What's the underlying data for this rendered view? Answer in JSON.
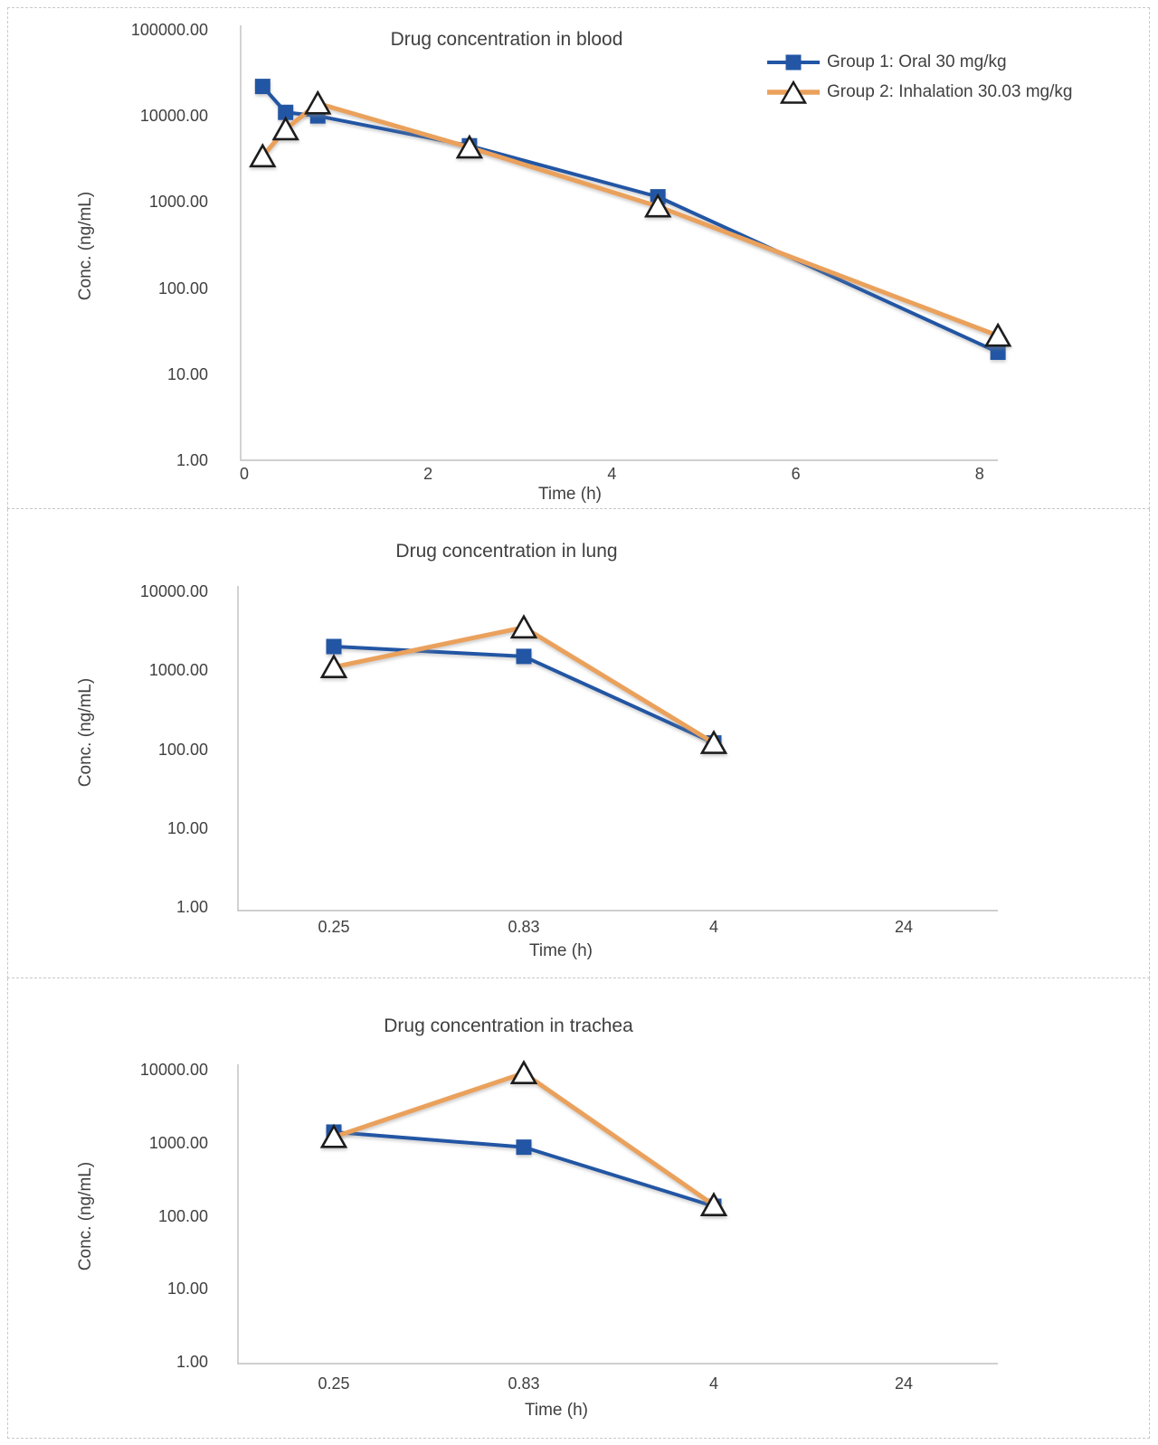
{
  "page": {
    "background": "#ffffff",
    "text_color": "#404040"
  },
  "legend": {
    "position": "top-right",
    "items": [
      {
        "label": "Group 1: Oral 30 mg/kg",
        "color": "#2356A4",
        "marker": "square"
      },
      {
        "label": "Group 2: Inhalation 30.03 mg/kg",
        "color": "#EAA15C",
        "marker": "triangle-open"
      }
    ]
  },
  "chart_data": [
    {
      "id": "blood",
      "type": "line",
      "title": "Drug concentration in blood",
      "xlabel": "Time (h)",
      "ylabel": "Conc. (ng/mL)",
      "y_scale": "log",
      "y_range": [
        1,
        100000
      ],
      "y_ticks": [
        "100000.00",
        "10000.00",
        "1000.00",
        "100.00",
        "10.00",
        "1.00"
      ],
      "x_type": "linear",
      "x_range": [
        0,
        8.2
      ],
      "x_ticks": [
        "0",
        "2",
        "4",
        "6",
        "8"
      ],
      "x_tick_values": [
        0,
        2,
        4,
        6,
        8
      ],
      "x": [
        0.2,
        0.45,
        0.8,
        2.45,
        4.5,
        8.2
      ],
      "series": [
        {
          "name": "Group 1: Oral 30 mg/kg",
          "values": [
            22000,
            11000,
            10000,
            4500,
            1150,
            18
          ]
        },
        {
          "name": "Group 2: Inhalation 30.03 mg/kg",
          "values": [
            3400,
            7000,
            14000,
            4300,
            890,
            28
          ]
        }
      ],
      "grid": false
    },
    {
      "id": "lung",
      "type": "line",
      "title": "Drug concentration in lung",
      "xlabel": "Time (h)",
      "ylabel": "Conc. (ng/mL)",
      "y_scale": "log",
      "y_range": [
        1,
        10000
      ],
      "y_ticks": [
        "10000.00",
        "1000.00",
        "100.00",
        "10.00",
        "1.00"
      ],
      "x_type": "category",
      "x_ticks": [
        "0.25",
        "0.83",
        "4",
        "24"
      ],
      "series": [
        {
          "name": "Group 1: Oral 30 mg/kg",
          "values": [
            2000,
            1500,
            120,
            null
          ]
        },
        {
          "name": "Group 2: Inhalation 30.03 mg/kg",
          "values": [
            1100,
            3500,
            120,
            null
          ]
        }
      ],
      "grid": false
    },
    {
      "id": "trachea",
      "type": "line",
      "title": "Drug concentration in trachea",
      "xlabel": "Time (h)",
      "ylabel": "Conc. (ng/mL)",
      "y_scale": "log",
      "y_range": [
        1,
        10000
      ],
      "y_ticks": [
        "10000.00",
        "1000.00",
        "100.00",
        "10.00",
        "1.00"
      ],
      "x_type": "category",
      "x_ticks": [
        "0.25",
        "0.83",
        "4",
        "24"
      ],
      "series": [
        {
          "name": "Group 1: Oral 30 mg/kg",
          "values": [
            1400,
            870,
            135,
            null
          ]
        },
        {
          "name": "Group 2: Inhalation 30.03 mg/kg",
          "values": [
            1200,
            9000,
            140,
            null
          ]
        }
      ],
      "grid": false
    }
  ]
}
